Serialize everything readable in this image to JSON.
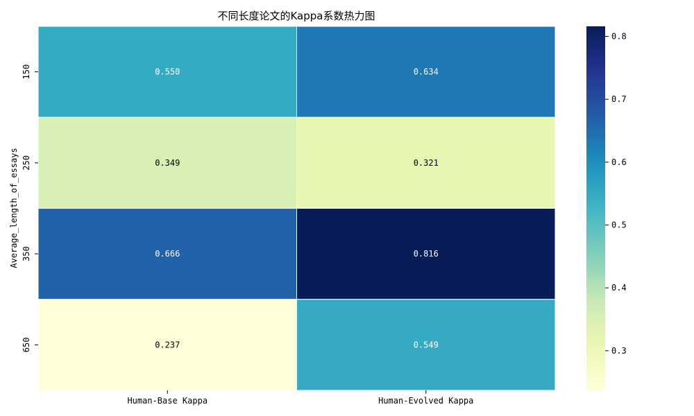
{
  "chart_data": {
    "type": "heatmap",
    "title": "不同长度论文的Kappa系数热力图",
    "xlabel": "",
    "ylabel": "Average_length_of_essays",
    "x_categories": [
      "Human-Base Kappa",
      "Human-Evolved Kappa"
    ],
    "y_categories": [
      "150",
      "250",
      "350",
      "650"
    ],
    "values": [
      [
        0.55,
        0.634
      ],
      [
        0.349,
        0.321
      ],
      [
        0.666,
        0.816
      ],
      [
        0.237,
        0.549
      ]
    ],
    "value_labels": [
      [
        "0.550",
        "0.634"
      ],
      [
        "0.349",
        "0.321"
      ],
      [
        "0.666",
        "0.816"
      ],
      [
        "0.237",
        "0.549"
      ]
    ],
    "colorbar": {
      "colormap": "YlGnBu",
      "vmin": 0.237,
      "vmax": 0.816,
      "ticks": [
        0.3,
        0.4,
        0.5,
        0.6,
        0.7,
        0.8
      ],
      "tick_labels": [
        "0.3",
        "0.4",
        "0.5",
        "0.6",
        "0.7",
        "0.8"
      ]
    },
    "colors": {
      "text_light": "#ffffff",
      "text_dark": "#000000",
      "grid_line": "#ffffff"
    }
  }
}
